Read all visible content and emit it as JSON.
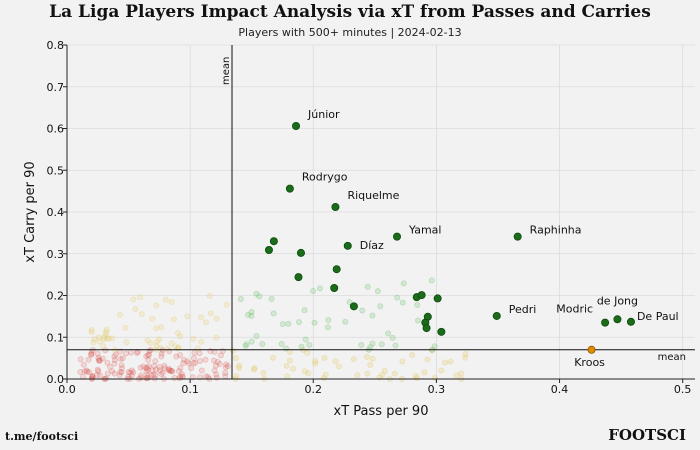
{
  "chart_data": {
    "type": "scatter",
    "title": "La Liga Players Impact Analysis via xT from Passes and Carries",
    "subtitle": "Players with 500+ minutes | 2024-02-13",
    "xlabel": "xT Pass per 90",
    "ylabel": "xT Carry per 90",
    "xlim": [
      0.0,
      0.51
    ],
    "ylim": [
      0.0,
      0.8
    ],
    "xticks": [
      0.0,
      0.1,
      0.2,
      0.3,
      0.4,
      0.5
    ],
    "xtick_labels": [
      "0.0",
      "0.1",
      "0.2",
      "0.3",
      "0.4",
      "0.5"
    ],
    "yticks": [
      0.0,
      0.1,
      0.2,
      0.3,
      0.4,
      0.5,
      0.6,
      0.7,
      0.8
    ],
    "ytick_labels": [
      "0.0",
      "0.1",
      "0.2",
      "0.3",
      "0.4",
      "0.5",
      "0.6",
      "0.7",
      "0.8"
    ],
    "grid": true,
    "mean_lines": {
      "x": 0.134,
      "y": 0.07,
      "x_label": "mean",
      "y_label": "mean"
    },
    "colors": {
      "high_both": "#1a6b1a",
      "high_pass": "#e08a00",
      "high_carry": "#6abf69",
      "low_both": "#d9534f",
      "faint_yellow": "#e3c75a",
      "axis": "#222222",
      "grid": "#dcdcdc"
    },
    "highlighted": [
      {
        "name": "Júnior",
        "x": 0.186,
        "y": 0.606,
        "label": true
      },
      {
        "name": "Rodrygo",
        "x": 0.181,
        "y": 0.456,
        "label": true
      },
      {
        "name": "Riquelme",
        "x": 0.218,
        "y": 0.412,
        "label": true
      },
      {
        "name": "Díaz",
        "x": 0.228,
        "y": 0.319,
        "label": true
      },
      {
        "name": "Yamal",
        "x": 0.268,
        "y": 0.341,
        "label": true
      },
      {
        "name": "Raphinha",
        "x": 0.366,
        "y": 0.341,
        "label": true
      },
      {
        "name": "Pedri",
        "x": 0.349,
        "y": 0.151,
        "label": true
      },
      {
        "name": "de Jong",
        "x": 0.447,
        "y": 0.143,
        "label": true
      },
      {
        "name": "Modric",
        "x": 0.437,
        "y": 0.135,
        "label": true
      },
      {
        "name": "De Paul",
        "x": 0.458,
        "y": 0.137,
        "label": true
      },
      {
        "name": "Kroos",
        "x": 0.426,
        "y": 0.07,
        "label": true,
        "group": "high_pass"
      },
      {
        "name": "",
        "x": 0.168,
        "y": 0.33,
        "label": false
      },
      {
        "name": "",
        "x": 0.164,
        "y": 0.309,
        "label": false
      },
      {
        "name": "",
        "x": 0.19,
        "y": 0.302,
        "label": false
      },
      {
        "name": "",
        "x": 0.188,
        "y": 0.244,
        "label": false
      },
      {
        "name": "",
        "x": 0.219,
        "y": 0.263,
        "label": false
      },
      {
        "name": "",
        "x": 0.217,
        "y": 0.218,
        "label": false
      },
      {
        "name": "",
        "x": 0.233,
        "y": 0.174,
        "label": false
      },
      {
        "name": "",
        "x": 0.284,
        "y": 0.196,
        "label": false
      },
      {
        "name": "",
        "x": 0.288,
        "y": 0.201,
        "label": false
      },
      {
        "name": "",
        "x": 0.301,
        "y": 0.193,
        "label": false
      },
      {
        "name": "",
        "x": 0.293,
        "y": 0.149,
        "label": false
      },
      {
        "name": "",
        "x": 0.291,
        "y": 0.135,
        "label": false
      },
      {
        "name": "",
        "x": 0.292,
        "y": 0.122,
        "label": false
      },
      {
        "name": "",
        "x": 0.304,
        "y": 0.113,
        "label": false
      }
    ]
  },
  "footer": {
    "left": "t.me/footsci",
    "right": "FOOTSCI"
  }
}
